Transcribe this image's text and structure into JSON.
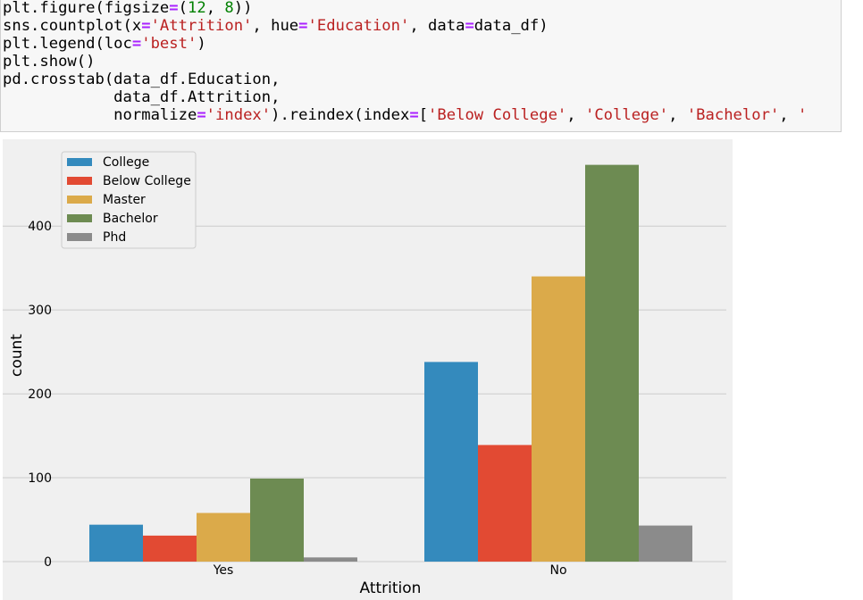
{
  "code": {
    "lines": [
      [
        {
          "t": "plt.figure(figsize"
        },
        {
          "t": "=",
          "c": "op"
        },
        {
          "t": "("
        },
        {
          "t": "12",
          "c": "num"
        },
        {
          "t": ", "
        },
        {
          "t": "8",
          "c": "num"
        },
        {
          "t": "))"
        }
      ],
      [
        {
          "t": "sns.countplot(x"
        },
        {
          "t": "=",
          "c": "op"
        },
        {
          "t": "'Attrition'",
          "c": "str"
        },
        {
          "t": ", hue"
        },
        {
          "t": "=",
          "c": "op"
        },
        {
          "t": "'Education'",
          "c": "str"
        },
        {
          "t": ", data"
        },
        {
          "t": "=",
          "c": "op"
        },
        {
          "t": "data_df)"
        }
      ],
      [
        {
          "t": "plt.legend(loc"
        },
        {
          "t": "=",
          "c": "op"
        },
        {
          "t": "'best'",
          "c": "str"
        },
        {
          "t": ")"
        }
      ],
      [
        {
          "t": "plt.show()"
        }
      ],
      [
        {
          "t": "pd.crosstab(data_df.Education,"
        }
      ],
      [
        {
          "t": "            data_df.Attrition,"
        }
      ],
      [
        {
          "t": "            normalize"
        },
        {
          "t": "=",
          "c": "op"
        },
        {
          "t": "'index'",
          "c": "str"
        },
        {
          "t": ").reindex(index"
        },
        {
          "t": "=",
          "c": "op"
        },
        {
          "t": "["
        },
        {
          "t": "'Below College'",
          "c": "str"
        },
        {
          "t": ", "
        },
        {
          "t": "'College'",
          "c": "str"
        },
        {
          "t": ", "
        },
        {
          "t": "'Bachelor'",
          "c": "str"
        },
        {
          "t": ", "
        },
        {
          "t": "'",
          "c": "str"
        }
      ]
    ]
  },
  "chart_data": {
    "type": "bar",
    "categories": [
      "Yes",
      "No"
    ],
    "series": [
      {
        "name": "College",
        "color": "#348abd",
        "values": [
          44,
          238
        ]
      },
      {
        "name": "Below College",
        "color": "#e24a33",
        "values": [
          31,
          139
        ]
      },
      {
        "name": "Master",
        "color": "#dbaa4a",
        "values": [
          58,
          340
        ]
      },
      {
        "name": "Bachelor",
        "color": "#6d8b52",
        "values": [
          99,
          473
        ]
      },
      {
        "name": "Phd",
        "color": "#8b8b8b",
        "values": [
          5,
          43
        ]
      }
    ],
    "xlabel": "Attrition",
    "ylabel": "count",
    "yticks": [
      0,
      100,
      200,
      300,
      400
    ],
    "ylim": [
      0,
      497
    ],
    "grid": true,
    "legend": "upper-left",
    "background": "#f0f0f0"
  }
}
